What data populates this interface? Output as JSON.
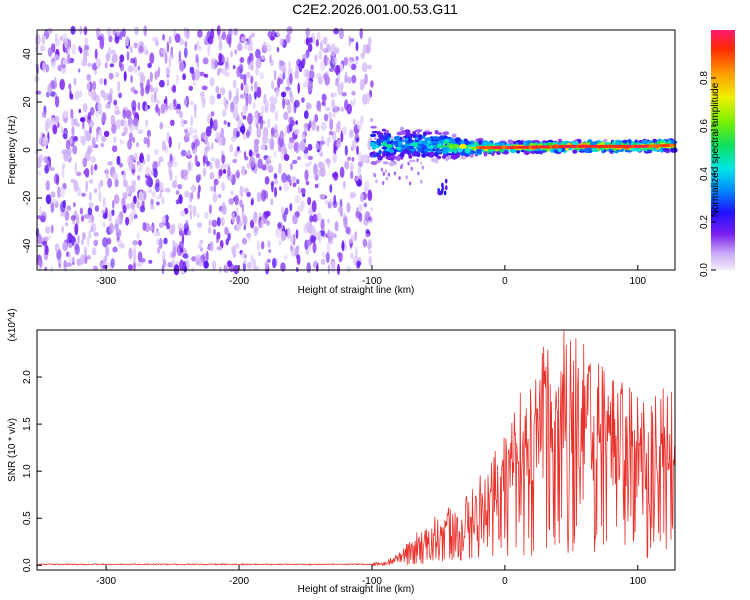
{
  "title": "C2E2.2026.001.00.53.G11",
  "chart_data": [
    {
      "type": "heatmap",
      "title": "C2E2.2026.001.00.53.G11",
      "xlabel": "Height of straight line (km)",
      "ylabel": "Frequency (Hz)",
      "xlim": [
        -352,
        128
      ],
      "ylim": [
        -50,
        50
      ],
      "xticks": [
        -300,
        -200,
        -100,
        0,
        100
      ],
      "yticks": [
        -40,
        -20,
        0,
        20,
        40
      ],
      "noise_region_x": [
        -352,
        -100
      ],
      "signal_band": [
        {
          "x": -100,
          "f_center": 2,
          "f_halfwidth": 7,
          "amplitude": 0.45
        },
        {
          "x": -75,
          "f_center": 2,
          "f_halfwidth": 6,
          "amplitude": 0.5
        },
        {
          "x": -50,
          "f_center": 2,
          "f_halfwidth": 5,
          "amplitude": 0.55
        },
        {
          "x": -25,
          "f_center": 1,
          "f_halfwidth": 3,
          "amplitude": 0.75
        },
        {
          "x": 0,
          "f_center": 1,
          "f_halfwidth": 2,
          "amplitude": 0.85
        },
        {
          "x": 50,
          "f_center": 1.5,
          "f_halfwidth": 2,
          "amplitude": 0.95
        },
        {
          "x": 100,
          "f_center": 1.5,
          "f_halfwidth": 2,
          "amplitude": 0.95
        },
        {
          "x": 128,
          "f_center": 2,
          "f_halfwidth": 2,
          "amplitude": 0.95
        }
      ],
      "colorbar": {
        "label": "Normalized spectral amplitude",
        "range": [
          0.0,
          1.0
        ],
        "ticks": [
          "0.0",
          "0.2",
          "0.4",
          "0.6",
          "0.8"
        ]
      }
    },
    {
      "type": "line",
      "xlabel": "Height of straight line (km)",
      "ylabel": "SNR (10 * v/v)",
      "y_multiplier": "(x10^4)",
      "xlim": [
        -352,
        128
      ],
      "ylim": [
        -0.05,
        2.5
      ],
      "xticks": [
        -300,
        -200,
        -100,
        0,
        100
      ],
      "yticks": [
        "0.0",
        "0.5",
        "1.0",
        "1.5",
        "2.0"
      ],
      "line_color": "#e8302a",
      "envelope": [
        {
          "x": -352,
          "y": 0.01
        },
        {
          "x": -100,
          "y": 0.01
        },
        {
          "x": -90,
          "y": 0.02
        },
        {
          "x": -80,
          "y": 0.12
        },
        {
          "x": -70,
          "y": 0.25
        },
        {
          "x": -60,
          "y": 0.4
        },
        {
          "x": -50,
          "y": 0.45
        },
        {
          "x": -40,
          "y": 0.55
        },
        {
          "x": -30,
          "y": 0.6
        },
        {
          "x": -20,
          "y": 0.75
        },
        {
          "x": -10,
          "y": 0.95
        },
        {
          "x": 0,
          "y": 1.2
        },
        {
          "x": 10,
          "y": 1.5
        },
        {
          "x": 20,
          "y": 1.75
        },
        {
          "x": 30,
          "y": 1.95
        },
        {
          "x": 40,
          "y": 2.1
        },
        {
          "x": 50,
          "y": 2.05
        },
        {
          "x": 60,
          "y": 2.1
        },
        {
          "x": 70,
          "y": 1.9
        },
        {
          "x": 80,
          "y": 1.75
        },
        {
          "x": 90,
          "y": 1.65
        },
        {
          "x": 100,
          "y": 1.55
        },
        {
          "x": 110,
          "y": 1.45
        },
        {
          "x": 120,
          "y": 1.6
        },
        {
          "x": 128,
          "y": 1.55
        }
      ]
    }
  ]
}
